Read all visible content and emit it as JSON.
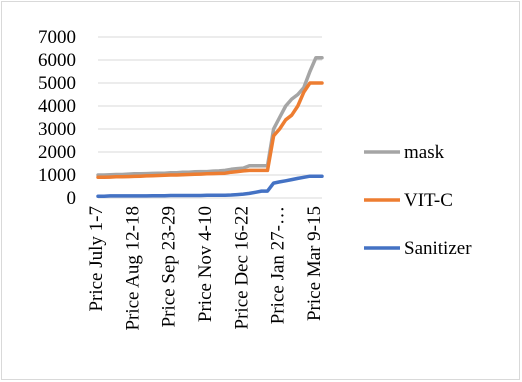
{
  "chart_data": {
    "type": "line",
    "title": "",
    "xlabel": "",
    "ylabel": "",
    "ylim": [
      0,
      7000
    ],
    "yticks": [
      0,
      1000,
      2000,
      3000,
      4000,
      5000,
      6000,
      7000
    ],
    "x_tick_labels": [
      "Price July 1-7",
      "Price Aug 12-18",
      "Price Sep 23-29",
      "Price Nov 4-10",
      "Price Dec 16-22",
      "Price Jan 27-…",
      "Price Mar 9-15"
    ],
    "x_count": 38,
    "grid": true,
    "legend_position": "right",
    "series": [
      {
        "name": "mask",
        "color": "#a5a5a5",
        "values": [
          1000,
          1000,
          1010,
          1020,
          1020,
          1040,
          1050,
          1050,
          1060,
          1070,
          1080,
          1080,
          1100,
          1100,
          1120,
          1120,
          1140,
          1150,
          1150,
          1170,
          1180,
          1200,
          1250,
          1280,
          1300,
          1400,
          1400,
          1400,
          1400,
          3000,
          3500,
          4000,
          4300,
          4500,
          4800,
          5500,
          6100,
          6100
        ]
      },
      {
        "name": "VIT-C",
        "color": "#ed7d31",
        "values": [
          900,
          900,
          910,
          920,
          920,
          930,
          940,
          950,
          960,
          970,
          980,
          990,
          1000,
          1000,
          1010,
          1020,
          1030,
          1040,
          1050,
          1060,
          1070,
          1080,
          1120,
          1150,
          1180,
          1200,
          1200,
          1200,
          1200,
          2700,
          3000,
          3400,
          3600,
          4000,
          4600,
          5000,
          5000,
          5000
        ]
      },
      {
        "name": "Sanitizer",
        "color": "#4472c4",
        "values": [
          80,
          80,
          90,
          90,
          90,
          90,
          90,
          90,
          90,
          95,
          100,
          100,
          110,
          110,
          110,
          110,
          110,
          110,
          120,
          120,
          120,
          120,
          130,
          150,
          170,
          200,
          250,
          300,
          300,
          650,
          700,
          750,
          800,
          850,
          900,
          950,
          950,
          950
        ]
      }
    ]
  }
}
